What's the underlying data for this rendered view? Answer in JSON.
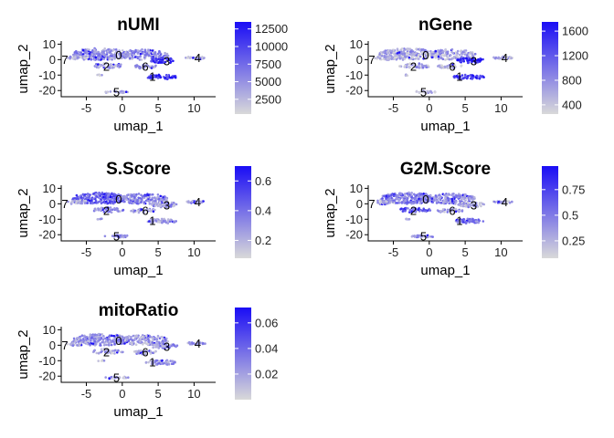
{
  "chart_data": [
    {
      "type": "scatter",
      "title": "nUMI",
      "xlabel": "umap_1",
      "ylabel": "umap_2",
      "xlim": [
        -8.5,
        13
      ],
      "ylim": [
        -24,
        12
      ],
      "xticks": [
        -5,
        0,
        5,
        10
      ],
      "yticks": [
        -20,
        -10,
        0,
        10
      ],
      "legend": {
        "position": "right",
        "min": 400,
        "max": 13500,
        "ticks": [
          2500,
          5000,
          7500,
          10000,
          12500
        ]
      },
      "colors": {
        "low": "#d9d9d9",
        "high": "#1a0df5"
      },
      "clusters": [
        {
          "label": "0",
          "x": -0.5,
          "y": 3
        },
        {
          "label": "1",
          "x": 4.2,
          "y": -11
        },
        {
          "label": "2",
          "x": -2.2,
          "y": -4.5
        },
        {
          "label": "3",
          "x": 6.2,
          "y": -1
        },
        {
          "label": "4",
          "x": 10.5,
          "y": 1
        },
        {
          "label": "5",
          "x": -0.8,
          "y": -21
        },
        {
          "label": "6",
          "x": 3.2,
          "y": -4.5
        },
        {
          "label": "7",
          "x": -8,
          "y": 0
        }
      ]
    },
    {
      "type": "scatter",
      "title": "nGene",
      "xlabel": "umap_1",
      "ylabel": "umap_2",
      "xlim": [
        -8.5,
        13
      ],
      "ylim": [
        -24,
        12
      ],
      "xticks": [
        -5,
        0,
        5,
        10
      ],
      "yticks": [
        -20,
        -10,
        0,
        10
      ],
      "legend": {
        "position": "right",
        "min": 250,
        "max": 1750,
        "ticks": [
          400,
          800,
          1200,
          1600
        ]
      },
      "colors": {
        "low": "#d9d9d9",
        "high": "#1a0df5"
      },
      "clusters": [
        {
          "label": "0",
          "x": -0.5,
          "y": 3
        },
        {
          "label": "1",
          "x": 4.2,
          "y": -11
        },
        {
          "label": "2",
          "x": -2.2,
          "y": -4.5
        },
        {
          "label": "3",
          "x": 6.2,
          "y": -1
        },
        {
          "label": "4",
          "x": 10.5,
          "y": 1
        },
        {
          "label": "5",
          "x": -0.8,
          "y": -21
        },
        {
          "label": "6",
          "x": 3.2,
          "y": -4.5
        },
        {
          "label": "7",
          "x": -8,
          "y": 0
        }
      ]
    },
    {
      "type": "scatter",
      "title": "S.Score",
      "xlabel": "umap_1",
      "ylabel": "umap_2",
      "xlim": [
        -8.5,
        13
      ],
      "ylim": [
        -24,
        12
      ],
      "xticks": [
        -5,
        0,
        5,
        10
      ],
      "yticks": [
        -20,
        -10,
        0,
        10
      ],
      "legend": {
        "position": "right",
        "min": 0.08,
        "max": 0.7,
        "ticks": [
          0.2,
          0.4,
          0.6
        ]
      },
      "colors": {
        "low": "#d9d9d9",
        "high": "#1a0df5"
      },
      "clusters": [
        {
          "label": "0",
          "x": -0.5,
          "y": 3
        },
        {
          "label": "1",
          "x": 4.2,
          "y": -11
        },
        {
          "label": "2",
          "x": -2.2,
          "y": -4.5
        },
        {
          "label": "3",
          "x": 6.2,
          "y": -1
        },
        {
          "label": "4",
          "x": 10.5,
          "y": 1
        },
        {
          "label": "5",
          "x": -0.8,
          "y": -21
        },
        {
          "label": "6",
          "x": 3.2,
          "y": -4.5
        },
        {
          "label": "7",
          "x": -8,
          "y": 0
        }
      ]
    },
    {
      "type": "scatter",
      "title": "G2M.Score",
      "xlabel": "umap_1",
      "ylabel": "umap_2",
      "xlim": [
        -8.5,
        13
      ],
      "ylim": [
        -24,
        12
      ],
      "xticks": [
        -5,
        0,
        5,
        10
      ],
      "yticks": [
        -20,
        -10,
        0,
        10
      ],
      "legend": {
        "position": "right",
        "min": 0.08,
        "max": 0.98,
        "ticks": [
          0.25,
          0.5,
          0.75
        ]
      },
      "colors": {
        "low": "#d9d9d9",
        "high": "#1a0df5"
      },
      "clusters": [
        {
          "label": "0",
          "x": -0.5,
          "y": 3
        },
        {
          "label": "1",
          "x": 4.2,
          "y": -11
        },
        {
          "label": "2",
          "x": -2.2,
          "y": -4.5
        },
        {
          "label": "3",
          "x": 6.2,
          "y": -1
        },
        {
          "label": "4",
          "x": 10.5,
          "y": 1
        },
        {
          "label": "5",
          "x": -0.8,
          "y": -21
        },
        {
          "label": "6",
          "x": 3.2,
          "y": -4.5
        },
        {
          "label": "7",
          "x": -8,
          "y": 0
        }
      ]
    },
    {
      "type": "scatter",
      "title": "mitoRatio",
      "xlabel": "umap_1",
      "ylabel": "umap_2",
      "xlim": [
        -8.5,
        13
      ],
      "ylim": [
        -24,
        12
      ],
      "xticks": [
        -5,
        0,
        5,
        10
      ],
      "yticks": [
        -20,
        -10,
        0,
        10
      ],
      "legend": {
        "position": "right",
        "min": 0.0,
        "max": 0.072,
        "ticks": [
          0.02,
          0.04,
          0.06
        ]
      },
      "colors": {
        "low": "#d9d9d9",
        "high": "#1a0df5"
      },
      "clusters": [
        {
          "label": "0",
          "x": -0.5,
          "y": 3
        },
        {
          "label": "1",
          "x": 4.2,
          "y": -11
        },
        {
          "label": "2",
          "x": -2.2,
          "y": -4.5
        },
        {
          "label": "3",
          "x": 6.2,
          "y": -1
        },
        {
          "label": "4",
          "x": 10.5,
          "y": 1
        },
        {
          "label": "5",
          "x": -0.8,
          "y": -21
        },
        {
          "label": "6",
          "x": 3.2,
          "y": -4.5
        },
        {
          "label": "7",
          "x": -8,
          "y": 0
        }
      ]
    }
  ]
}
